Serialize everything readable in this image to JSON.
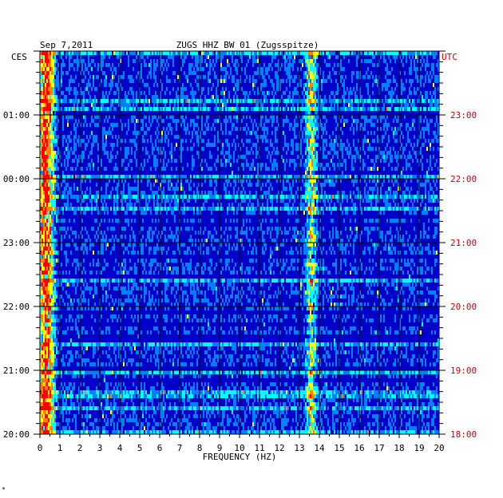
{
  "chart_data": {
    "type": "heatmap",
    "title": "ZUGS HHZ BW 01 (Zugsspitze)",
    "date": "Sep 7,2011",
    "left_axis_label": "CES",
    "right_axis_label": "UTC",
    "xlabel": "FREQUENCY (HZ)",
    "xlim": [
      0,
      20
    ],
    "x_ticks": [
      "0",
      "1",
      "2",
      "3",
      "4",
      "5",
      "6",
      "7",
      "8",
      "9",
      "10",
      "11",
      "12",
      "13",
      "14",
      "15",
      "16",
      "17",
      "18",
      "19",
      "20"
    ],
    "y_ticks_left": [
      "01:00",
      "00:00",
      "23:00",
      "22:00",
      "21:00",
      "20:00"
    ],
    "y_ticks_right": [
      "23:00",
      "22:00",
      "21:00",
      "20:00",
      "19:00",
      "18:00"
    ],
    "colorscale": [
      "#00007f",
      "#0000ff",
      "#0080ff",
      "#00ffff",
      "#ffff00",
      "#ff8000",
      "#ff0000"
    ],
    "grid": true,
    "bright_bands_hz": [
      {
        "center": 0.3,
        "width": 0.6,
        "strength": 0.8
      },
      {
        "center": 13.6,
        "width": 0.4,
        "strength": 0.45
      }
    ],
    "stamp": "*"
  },
  "colors": {
    "frame": "#000000",
    "utc_text": "#cc0000",
    "background": "#0000c8"
  }
}
